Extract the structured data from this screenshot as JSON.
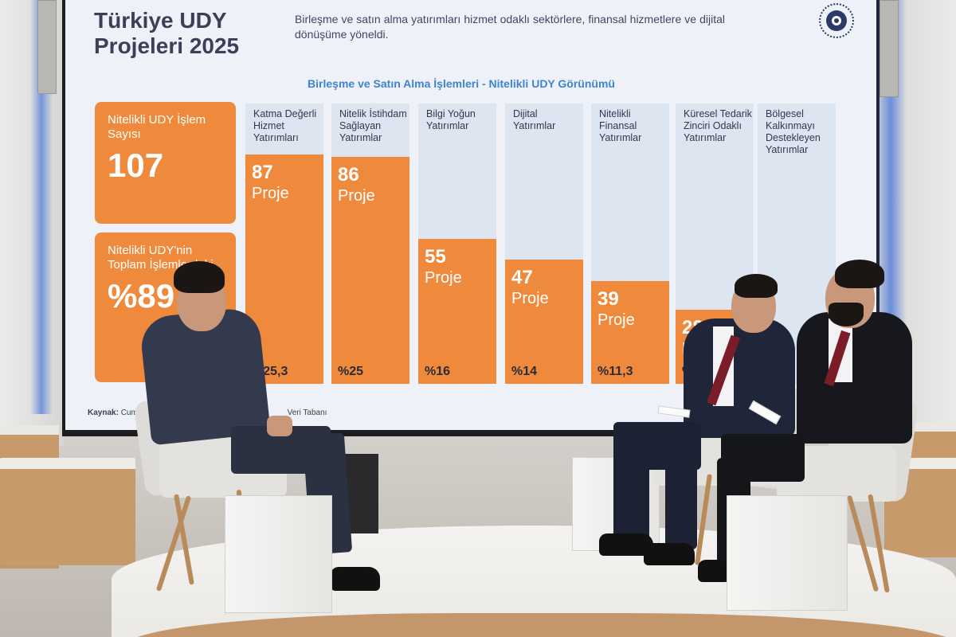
{
  "screen": {
    "title": "Türkiye UDY Projeleri 2025",
    "subtitle": "Birleşme ve satın alma yatırımları hizmet odaklı sektörlere, finansal hizmetlere ve dijital dönüşüme yöneldi.",
    "section_title": "Birleşme ve Satın Alma İşlemleri - Nitelikli UDY Görünümü",
    "kpis": [
      {
        "label": "Nitelikli UDY İşlem Sayısı",
        "value": "107"
      },
      {
        "label": "Nitelikli UDY'nin Toplam İşlemlerdeki",
        "value": "%89"
      }
    ],
    "source": {
      "prefix": "Kaynak:",
      "text": "Cum",
      "text_tail": "Veri Tabanı"
    },
    "colors": {
      "accent_orange": "#ef8a3c",
      "column_bg": "#dde5f1",
      "title_navy": "#3b3f58",
      "section_blue": "#3f84cf"
    },
    "logo_icon": "presidency-logo-icon"
  },
  "chart_data": {
    "type": "bar",
    "categories": [
      "Katma Değerli Hizmet Yatırımları",
      "Nitelik İstihdam Sağlayan Yatırımlar",
      "Bilgi Yoğun Yatırımlar",
      "Dijital Yatırımlar",
      "Nitelikli Finansal Yatırımlar",
      "Küresel Tedarik Zinciri Odaklı Yatırımlar",
      "Bölgesel Kalkınmayı Destekleyen Yatırımlar"
    ],
    "values": [
      87,
      86,
      55,
      47,
      39,
      28,
      null
    ],
    "value_unit": "Proje",
    "value_labels": [
      "87",
      "86",
      "55",
      "47",
      "39",
      "28",
      ""
    ],
    "percent_labels": [
      "%25,3",
      "%25",
      "%16",
      "%14",
      "%11,3",
      "%8,1",
      ""
    ],
    "title": "Birleşme ve Satın Alma İşlemleri - Nitelikli UDY Görünümü",
    "ylim": [
      0,
      100
    ],
    "grid": false
  }
}
